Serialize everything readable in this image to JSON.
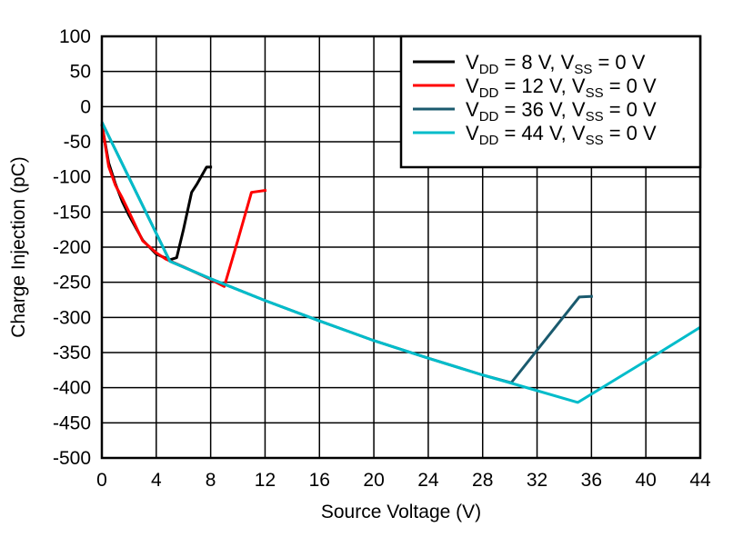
{
  "chart_data": {
    "type": "line",
    "title": "",
    "xlabel": "Source Voltage (V)",
    "ylabel": "Charge Injection (pC)",
    "xlim": [
      0,
      44
    ],
    "ylim": [
      -500,
      100
    ],
    "xticks": [
      0,
      4,
      8,
      12,
      16,
      20,
      24,
      28,
      32,
      36,
      40,
      44
    ],
    "yticks": [
      100,
      50,
      0,
      -50,
      -100,
      -150,
      -200,
      -250,
      -300,
      -350,
      -400,
      -450,
      -500
    ],
    "grid": true,
    "legend_position": "top-right",
    "series": [
      {
        "name": "VDD = 8 V, VSS = 0 V",
        "color": "#000000",
        "x": [
          0,
          0.5,
          1,
          1.5,
          2,
          3,
          4,
          5,
          5.5,
          6,
          6.6,
          7,
          7.7,
          8.1
        ],
        "y": [
          -25,
          -80,
          -110,
          -135,
          -155,
          -190,
          -210,
          -218,
          -215,
          -175,
          -122,
          -110,
          -86,
          -86
        ]
      },
      {
        "name": "VDD = 12 V, VSS = 0 V",
        "color": "#ff0000",
        "x": [
          0,
          0.5,
          1,
          1.5,
          2,
          3,
          4,
          4.7,
          6,
          8,
          9,
          10,
          11,
          12.1
        ],
        "y": [
          -25,
          -85,
          -112,
          -130,
          -150,
          -191,
          -208,
          -217,
          -228,
          -246,
          -256,
          -190,
          -122,
          -119
        ]
      },
      {
        "name": "VDD = 36 V, VSS = 0 V",
        "color": "#1a5a6e",
        "x": [
          0,
          5,
          8,
          12,
          16,
          20,
          24,
          28,
          30.1,
          35.1,
          36.1
        ],
        "y": [
          -22,
          -220,
          -245,
          -276,
          -305,
          -333,
          -358,
          -382,
          -393,
          -271,
          -270
        ]
      },
      {
        "name": "VDD = 44 V, VSS = 0 V",
        "color": "#00bcca",
        "x": [
          0,
          5,
          8,
          12,
          16,
          20,
          24,
          28,
          30,
          35,
          40,
          44
        ],
        "y": [
          -22,
          -220,
          -245,
          -276,
          -305,
          -333,
          -358,
          -382,
          -393,
          -421,
          -362,
          -314
        ]
      }
    ]
  }
}
